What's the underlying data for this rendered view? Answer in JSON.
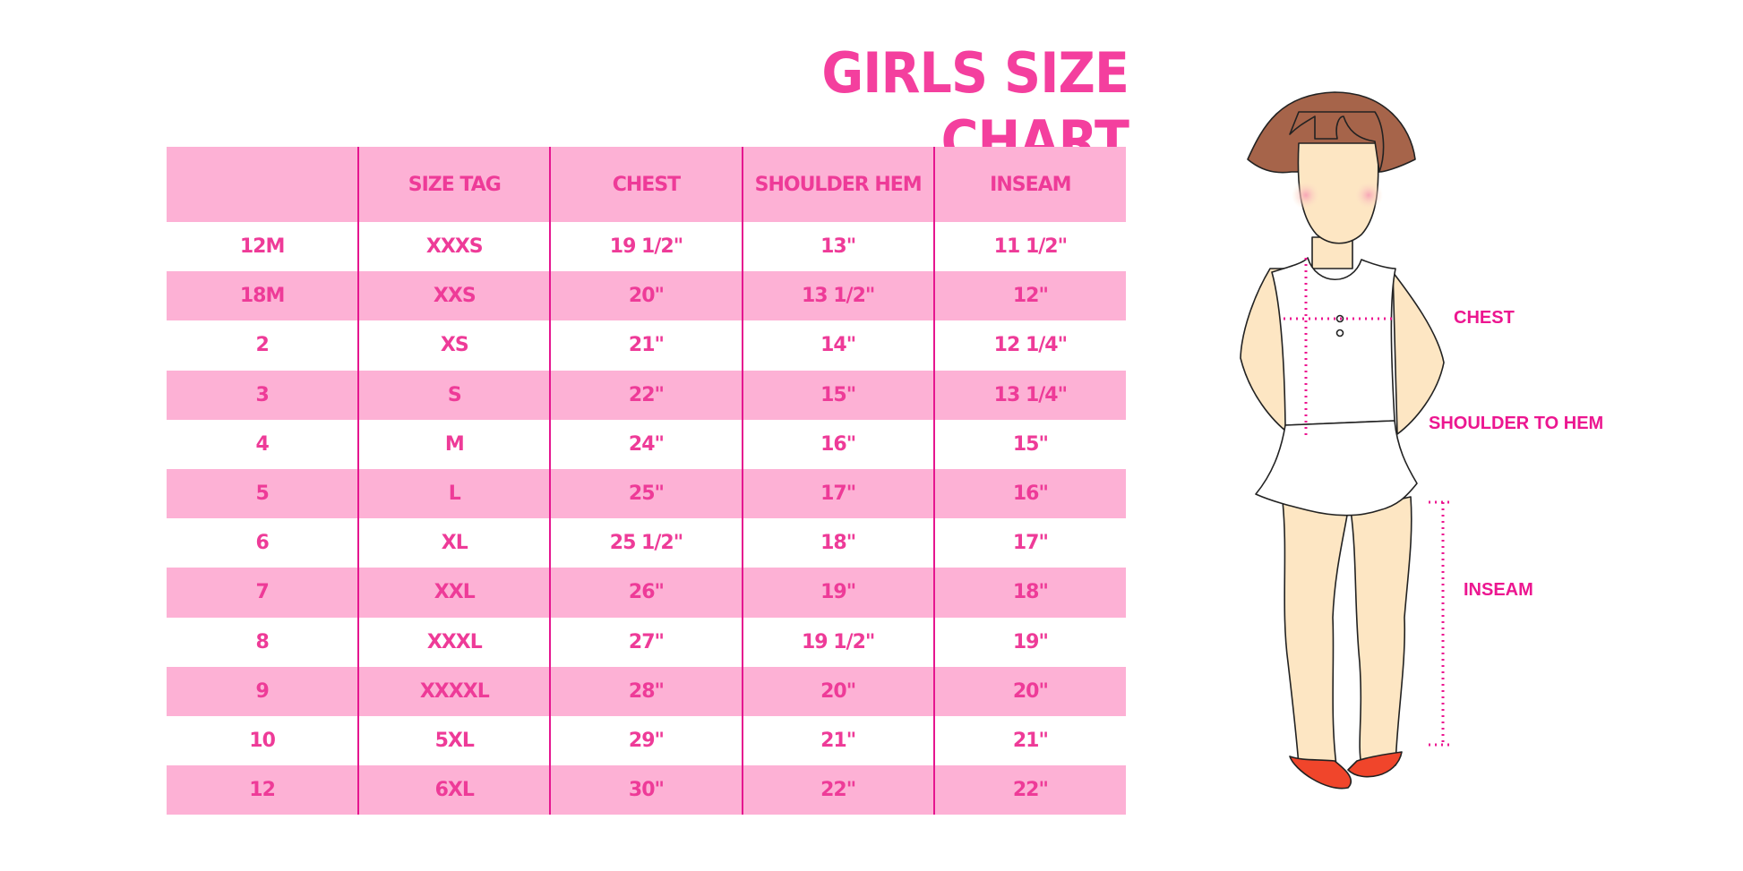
{
  "title": "GIRLS SIZE CHART",
  "table": {
    "headers": [
      "",
      "SIZE TAG",
      "CHEST",
      "SHOULDER HEM",
      "INSEAM"
    ],
    "rows": [
      [
        "12M",
        "XXXS",
        "19 1/2\"",
        "13\"",
        "11 1/2\""
      ],
      [
        "18M",
        "XXS",
        "20\"",
        "13 1/2\"",
        "12\""
      ],
      [
        "2",
        "XS",
        "21\"",
        "14\"",
        "12 1/4\""
      ],
      [
        "3",
        "S",
        "22\"",
        "15\"",
        "13 1/4\""
      ],
      [
        "4",
        "M",
        "24\"",
        "16\"",
        "15\""
      ],
      [
        "5",
        "L",
        "25\"",
        "17\"",
        "16\""
      ],
      [
        "6",
        "XL",
        "25 1/2\"",
        "18\"",
        "17\""
      ],
      [
        "7",
        "XXL",
        "26\"",
        "19\"",
        "18\""
      ],
      [
        "8",
        "XXXL",
        "27\"",
        "19 1/2\"",
        "19\""
      ],
      [
        "9",
        "XXXXL",
        "28\"",
        "20\"",
        "20\""
      ],
      [
        "10",
        "5XL",
        "29\"",
        "21\"",
        "21\""
      ],
      [
        "12",
        "6XL",
        "30\"",
        "22\"",
        "22\""
      ]
    ]
  },
  "figure": {
    "labels": {
      "chest": "CHEST",
      "shoulder_to_hem": "SHOULDER TO HEM",
      "inseam": "INSEAM"
    }
  },
  "colors": {
    "accent": "#f43f9e",
    "row_pink": "#fdb1d5",
    "divider": "#e5168f"
  }
}
